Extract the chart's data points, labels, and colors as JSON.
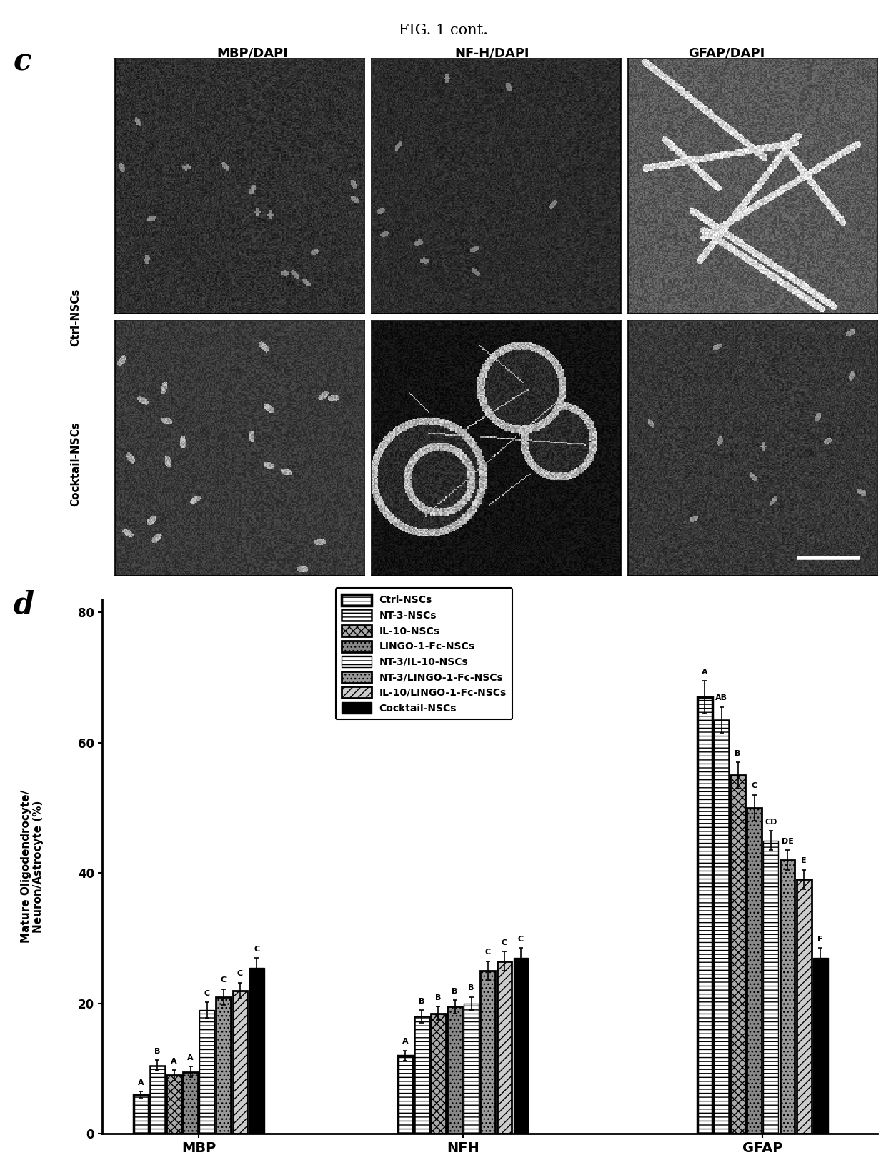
{
  "title": "FIG. 1 cont.",
  "panel_c_label": "c",
  "panel_d_label": "d",
  "col_labels": [
    "MBP/DAPI",
    "NF-H/DAPI",
    "GFAP/DAPI"
  ],
  "row_labels": [
    "Ctrl-NSCs",
    "Cocktail-NSCs"
  ],
  "bar_groups": [
    "MBP",
    "NFH",
    "GFAP"
  ],
  "legend_labels": [
    "Ctrl-NSCs",
    "NT-3-NSCs",
    "IL-10-NSCs",
    "LINGO-1-Fc-NSCs",
    "NT-3/IL-10-NSCs",
    "NT-3/LINGO-1-Fc-NSCs",
    "IL-10/LINGO-1-Fc-NSCs",
    "Cocktail-NSCs"
  ],
  "ylabel": "Mature Oligodendrocyte/\nNeuron/Astrocyte (%)",
  "ylim": [
    0,
    80
  ],
  "yticks": [
    0,
    20,
    40,
    60,
    80
  ],
  "mbp_data": [
    6.0,
    10.5,
    9.0,
    9.5,
    19.0,
    21.0,
    22.0,
    25.5
  ],
  "nfh_data": [
    12.0,
    18.0,
    18.5,
    19.5,
    20.0,
    25.0,
    26.5,
    27.0
  ],
  "gfap_data": [
    67.0,
    63.5,
    55.0,
    50.0,
    45.0,
    42.0,
    39.0,
    27.0
  ],
  "mbp_errors": [
    0.5,
    0.8,
    0.8,
    0.8,
    1.2,
    1.2,
    1.2,
    1.5
  ],
  "nfh_errors": [
    0.8,
    1.0,
    1.0,
    1.0,
    1.0,
    1.5,
    1.5,
    1.5
  ],
  "gfap_errors": [
    2.5,
    2.0,
    2.0,
    2.0,
    1.5,
    1.5,
    1.5,
    1.5
  ],
  "mbp_sig": [
    "A",
    "B",
    "A",
    "A",
    "C",
    "C",
    "C",
    "C"
  ],
  "nfh_sig": [
    "A",
    "B",
    "B",
    "B",
    "B",
    "C",
    "C",
    "C"
  ],
  "gfap_sig": [
    "A",
    "AB",
    "B",
    "C",
    "CD",
    "DE",
    "E",
    "F"
  ],
  "background_color": "#ffffff"
}
